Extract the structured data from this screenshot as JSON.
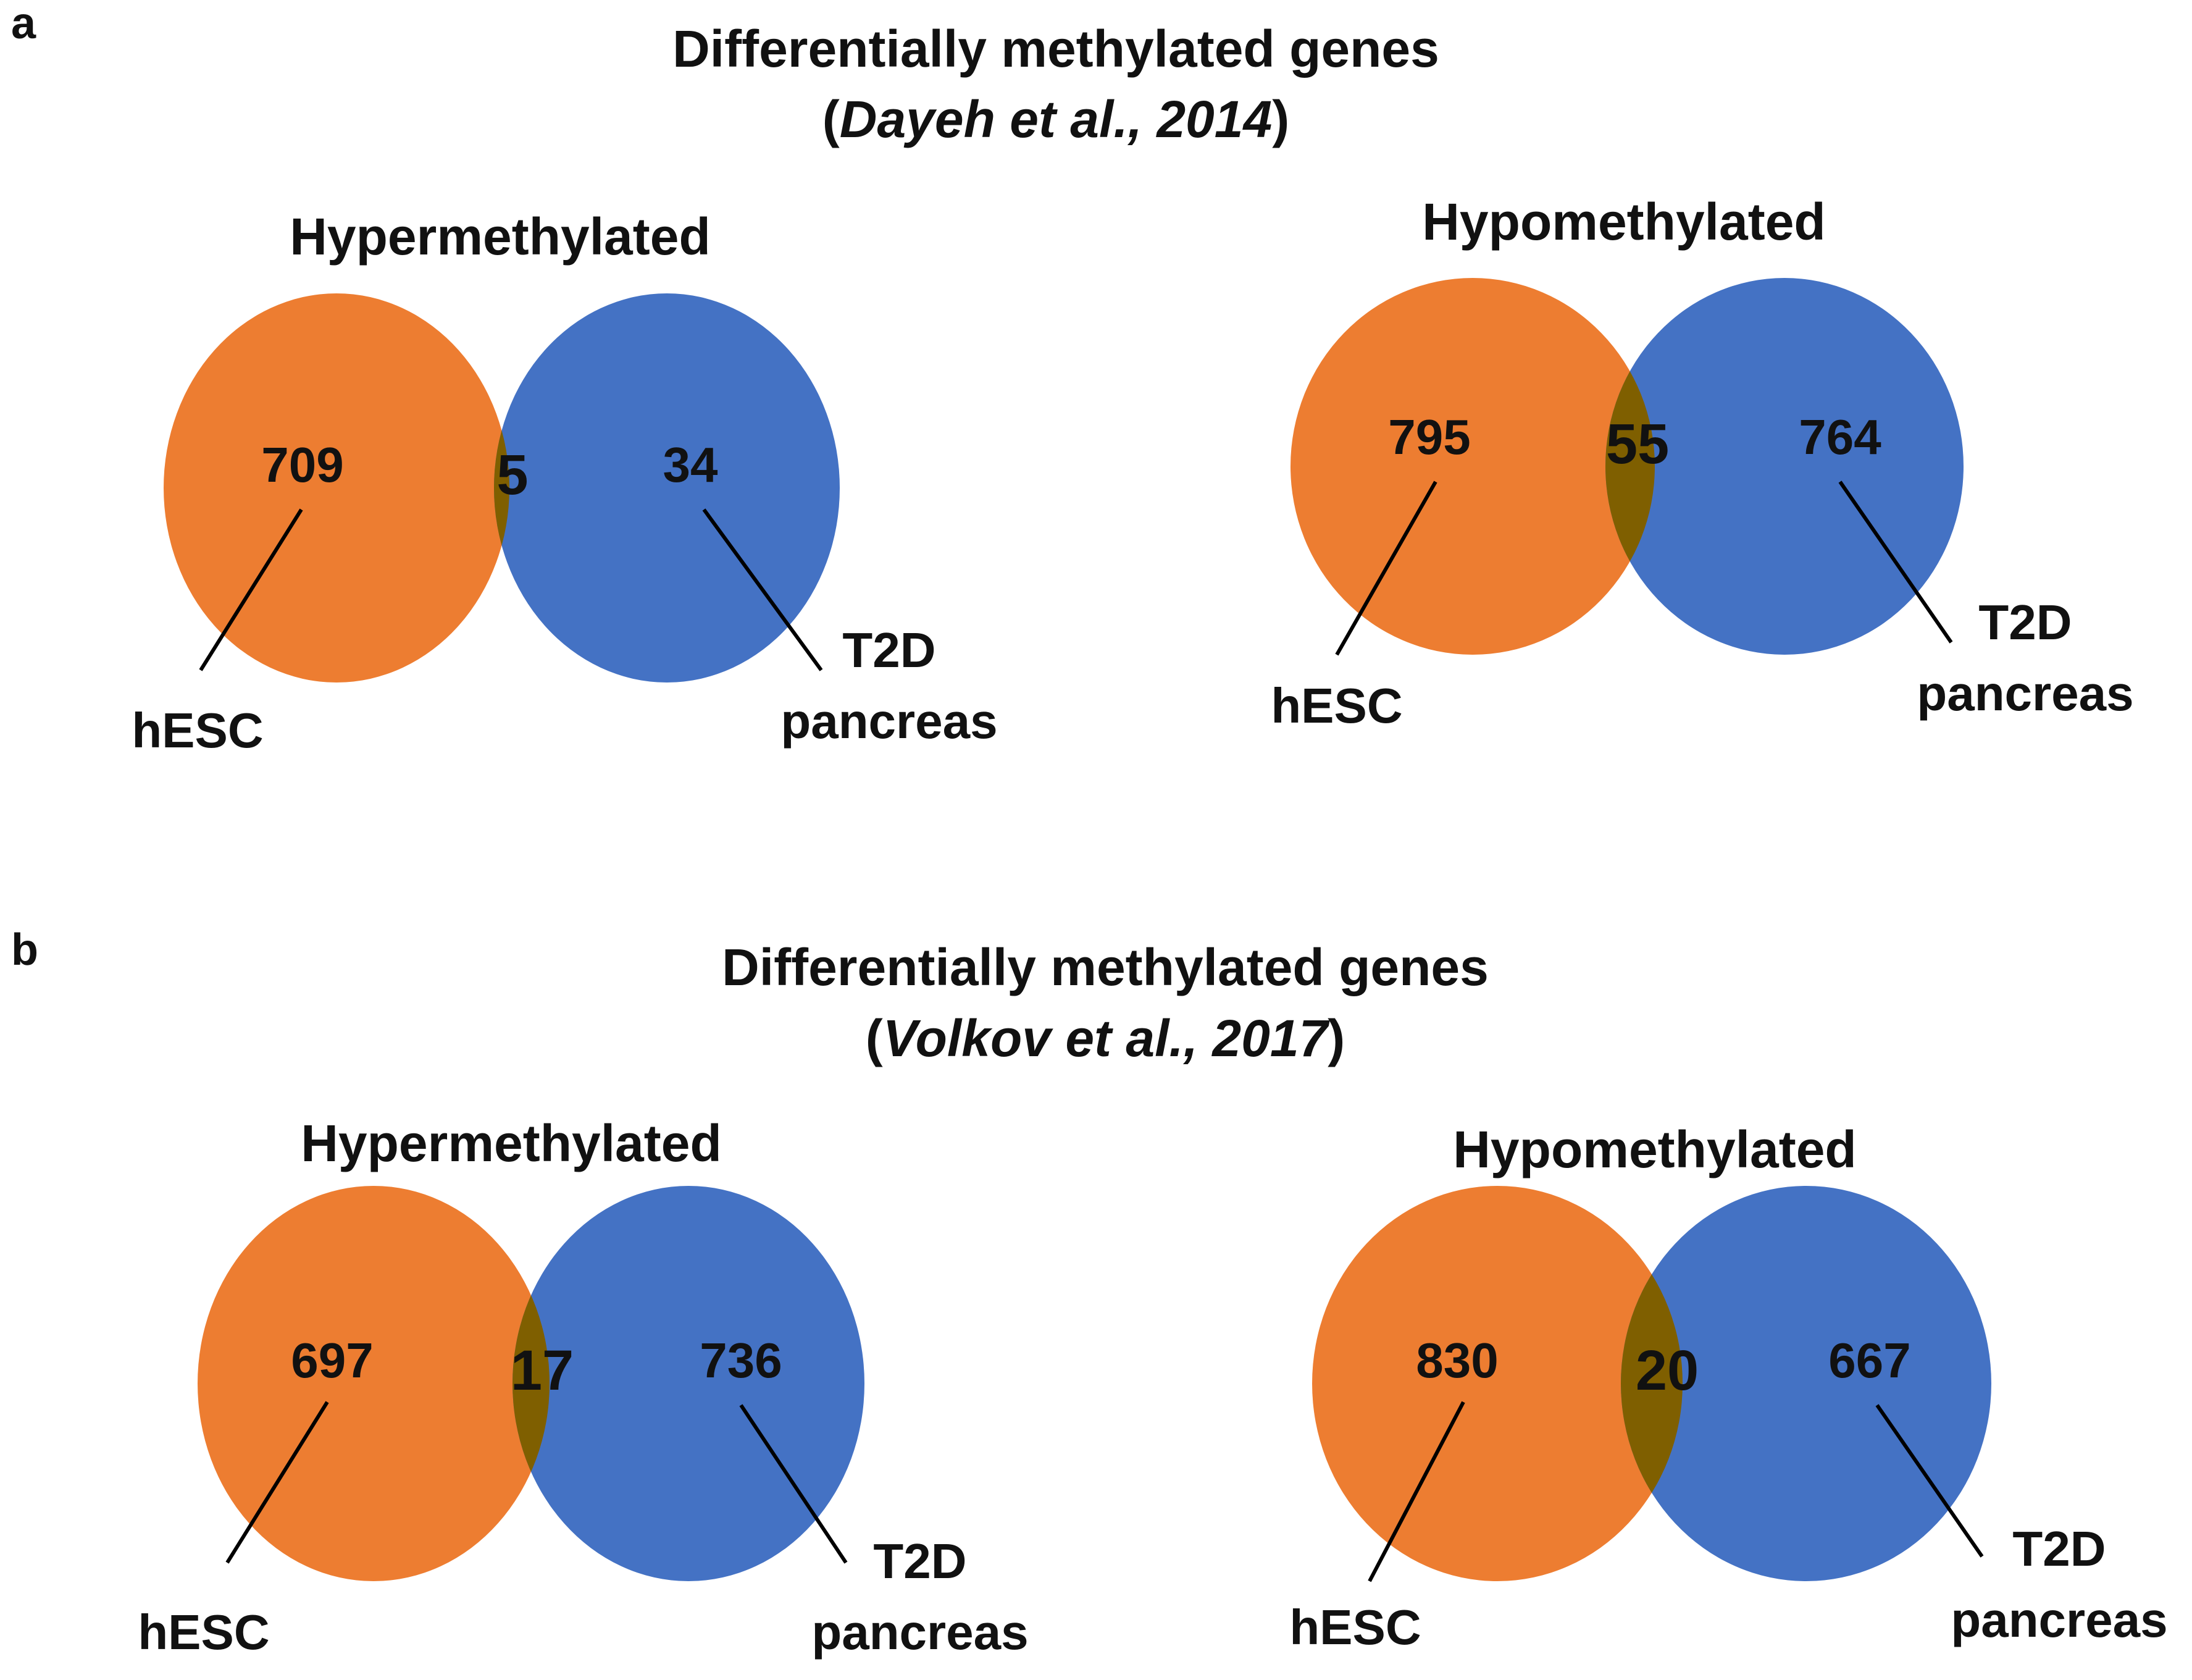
{
  "colors": {
    "hesc": "#ED7D31",
    "t2d": "#4472C4",
    "overlap": "#7F5F00"
  },
  "panels": [
    {
      "letter": "a",
      "title": "Differentially methylated genes",
      "citation_open": "(",
      "citation": "Dayeh et al., 2014",
      "citation_close": ")",
      "venns": [
        {
          "title": "Hypermethylated",
          "only_hesc": "709",
          "overlap": "5",
          "only_t2d": "34",
          "label_hesc": "hESC",
          "label_t2d_1": "T2D",
          "label_t2d_2": "pancreas"
        },
        {
          "title": "Hypomethylated",
          "only_hesc": "795",
          "overlap": "55",
          "only_t2d": "764",
          "label_hesc": "hESC",
          "label_t2d_1": "T2D",
          "label_t2d_2": "pancreas"
        }
      ]
    },
    {
      "letter": "b",
      "title": "Differentially methylated genes",
      "citation_open": "(",
      "citation": "Volkov et al., 2017",
      "citation_close": ")",
      "venns": [
        {
          "title": "Hypermethylated",
          "only_hesc": "697",
          "overlap": "17",
          "only_t2d": "736",
          "label_hesc": "hESC",
          "label_t2d_1": "T2D",
          "label_t2d_2": "pancreas"
        },
        {
          "title": "Hypomethylated",
          "only_hesc": "830",
          "overlap": "20",
          "only_t2d": "667",
          "label_hesc": "hESC",
          "label_t2d_1": "T2D",
          "label_t2d_2": "pancreas"
        }
      ]
    }
  ]
}
